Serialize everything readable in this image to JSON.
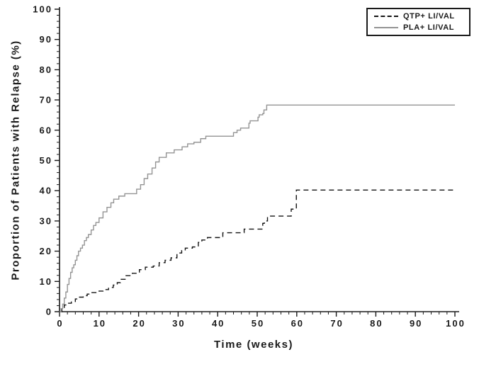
{
  "figure": {
    "y_axis_title": "Proportion of Patients with Relapse (%)",
    "x_axis_title": "Time (weeks)"
  },
  "legend": {
    "position": "top-right",
    "items": [
      {
        "label": "QTP+ LI/VAL",
        "line_style": "dashed",
        "color": "#141414"
      },
      {
        "label": "PLA+ LI/VAL",
        "line_style": "solid",
        "color": "#949494"
      }
    ]
  },
  "colors": {
    "axis": "#1a1a1a",
    "text": "#1a1a1a",
    "background": "#ffffff"
  },
  "chart_data": {
    "type": "line",
    "subtype": "kaplan-meier-step",
    "title": "",
    "xlabel": "Time (weeks)",
    "ylabel": "Proportion of Patients with Relapse (%)",
    "xlim": [
      0,
      100
    ],
    "ylim": [
      0,
      100
    ],
    "x_major_ticks": [
      0,
      10,
      20,
      30,
      40,
      50,
      60,
      70,
      80,
      90,
      100
    ],
    "y_major_ticks": [
      0,
      10,
      20,
      30,
      40,
      50,
      60,
      70,
      80,
      90,
      100
    ],
    "minor_tick_step": 2,
    "grid": false,
    "legend_position": "top-right",
    "series": [
      {
        "name": "QTP+ LI/VAL",
        "line_style": "dashed",
        "color": "#141414",
        "step": "after",
        "points": [
          [
            0,
            0
          ],
          [
            0.6,
            0.8
          ],
          [
            1.2,
            2.2
          ],
          [
            2,
            2.8
          ],
          [
            3,
            3.2
          ],
          [
            4,
            4.2
          ],
          [
            4.8,
            4.8
          ],
          [
            6,
            5.3
          ],
          [
            7,
            5.8
          ],
          [
            8.2,
            6.3
          ],
          [
            10,
            6.8
          ],
          [
            11,
            7.3
          ],
          [
            12.4,
            8
          ],
          [
            13.6,
            8.8
          ],
          [
            14.6,
            9.6
          ],
          [
            15.4,
            10.7
          ],
          [
            16.6,
            11.9
          ],
          [
            18.4,
            12.7
          ],
          [
            20.2,
            13.9
          ],
          [
            21.7,
            14.7
          ],
          [
            23.7,
            15.1
          ],
          [
            25.2,
            16.2
          ],
          [
            26.7,
            17
          ],
          [
            28.2,
            17.8
          ],
          [
            29.7,
            19.4
          ],
          [
            30.9,
            20.2
          ],
          [
            31.8,
            21
          ],
          [
            33.6,
            21.4
          ],
          [
            35.1,
            22.9
          ],
          [
            36,
            23.7
          ],
          [
            37.4,
            24.5
          ],
          [
            41.3,
            26.1
          ],
          [
            46.7,
            27.3
          ],
          [
            51.4,
            29.2
          ],
          [
            51.8,
            30
          ],
          [
            52.6,
            31.6
          ],
          [
            58.6,
            33.9
          ],
          [
            59.9,
            40.2
          ],
          [
            100,
            40.2
          ]
        ]
      },
      {
        "name": "PLA+ LI/VAL",
        "line_style": "solid",
        "color": "#949494",
        "step": "after",
        "points": [
          [
            0,
            0
          ],
          [
            0.4,
            1
          ],
          [
            0.8,
            2.5
          ],
          [
            1.2,
            4.5
          ],
          [
            1.6,
            6.5
          ],
          [
            2,
            9
          ],
          [
            2.4,
            11
          ],
          [
            2.8,
            13
          ],
          [
            3.2,
            14.5
          ],
          [
            3.6,
            15.5
          ],
          [
            4,
            17
          ],
          [
            4.4,
            18.5
          ],
          [
            4.8,
            20
          ],
          [
            5.3,
            21
          ],
          [
            5.8,
            22
          ],
          [
            6.3,
            23.5
          ],
          [
            6.8,
            24.5
          ],
          [
            7.3,
            25.5
          ],
          [
            8,
            27
          ],
          [
            8.6,
            28.5
          ],
          [
            9.2,
            29.5
          ],
          [
            10,
            31
          ],
          [
            11,
            33
          ],
          [
            12,
            34.5
          ],
          [
            13,
            36
          ],
          [
            13.7,
            37.2
          ],
          [
            15,
            38.2
          ],
          [
            16.5,
            39
          ],
          [
            19.5,
            40.5
          ],
          [
            20.5,
            42
          ],
          [
            21.4,
            44
          ],
          [
            22.3,
            45.5
          ],
          [
            23.4,
            47.5
          ],
          [
            24.3,
            49.5
          ],
          [
            25.2,
            51
          ],
          [
            27,
            52.5
          ],
          [
            29,
            53.5
          ],
          [
            31,
            54.5
          ],
          [
            32.4,
            55.5
          ],
          [
            34,
            56
          ],
          [
            35.7,
            57.2
          ],
          [
            37,
            58
          ],
          [
            44,
            59.2
          ],
          [
            44.9,
            60
          ],
          [
            45.8,
            60.7
          ],
          [
            47.9,
            62.3
          ],
          [
            48.2,
            63.1
          ],
          [
            50.2,
            64.3
          ],
          [
            50.5,
            65.1
          ],
          [
            51.4,
            65.5
          ],
          [
            51.7,
            66.7
          ],
          [
            52.4,
            68.3
          ],
          [
            100,
            68.3
          ]
        ]
      }
    ]
  }
}
